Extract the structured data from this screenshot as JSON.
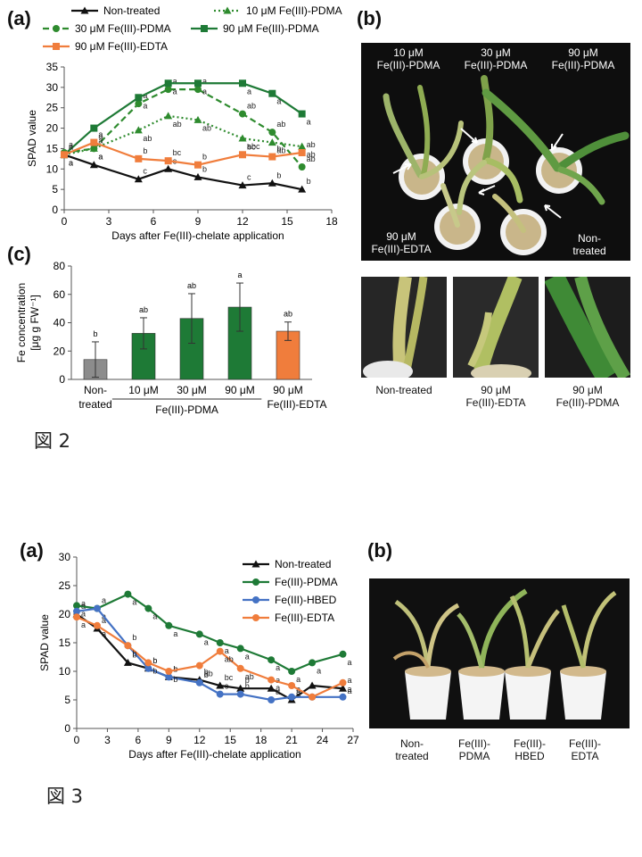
{
  "colors": {
    "non_treated": "#111111",
    "pdma10": "#2e8b2e",
    "pdma30": "#2e8b2e",
    "pdma90": "#1e7a36",
    "edta": "#f07d3c",
    "hbed": "#4472c4",
    "pdma_fig3": "#1e7a36",
    "bar_grey": "#8c8c8c"
  },
  "fig2": {
    "caption": "図 2",
    "panel_a_label": "(a)",
    "panel_b_label": "(b)",
    "panel_c_label": "(c)",
    "photo_b_top_labels": [
      {
        "l1": "10 μM",
        "l2": "Fe(III)-PDMA"
      },
      {
        "l1": "30 μM",
        "l2": "Fe(III)-PDMA"
      },
      {
        "l1": "90 μM",
        "l2": "Fe(III)-PDMA"
      }
    ],
    "photo_b_bottom_left": {
      "l1": "90 μM",
      "l2": "Fe(III)-EDTA"
    },
    "photo_b_bottom_right": {
      "l1": "Non-",
      "l2": "treated"
    },
    "closeup_captions": [
      {
        "l1": "Non-treated",
        "l2": ""
      },
      {
        "l1": "90 μM",
        "l2": "Fe(III)-EDTA"
      },
      {
        "l1": "90 μM",
        "l2": "Fe(III)-PDMA"
      }
    ]
  },
  "fig3": {
    "caption": "図 3",
    "panel_a_label": "(a)",
    "panel_b_label": "(b)",
    "photo_captions": [
      {
        "l1": "Non-",
        "l2": "treated"
      },
      {
        "l1": "Fe(III)-",
        "l2": "PDMA"
      },
      {
        "l1": "Fe(III)-",
        "l2": "HBED"
      },
      {
        "l1": "Fe(III)-",
        "l2": "EDTA"
      }
    ]
  },
  "chart_data": [
    {
      "id": "fig2a",
      "type": "line",
      "xlabel": "Days after Fe(III)-chelate application",
      "ylabel": "SPAD value",
      "xlim": [
        0,
        18
      ],
      "ylim": [
        0,
        35
      ],
      "xticks": [
        0,
        3,
        6,
        9,
        12,
        15,
        18
      ],
      "yticks": [
        0,
        5,
        10,
        15,
        20,
        25,
        30,
        35
      ],
      "legend": "top",
      "series": [
        {
          "key": "non_treated",
          "name": "Non-treated",
          "marker": "triangle",
          "dash": "",
          "x": [
            0,
            2,
            5,
            7,
            9,
            12,
            14,
            16
          ],
          "y": [
            13.5,
            11,
            7.5,
            10,
            8,
            6,
            6.5,
            5
          ],
          "labels": [
            "a",
            "a",
            "c",
            "c",
            "b",
            "c",
            "b",
            "b"
          ]
        },
        {
          "key": "pdma10",
          "name": "10 μM Fe(III)-PDMA",
          "marker": "triangle",
          "dash": "2,3",
          "x": [
            0,
            2,
            5,
            7,
            9,
            12,
            14,
            16
          ],
          "y": [
            13.5,
            15,
            19.5,
            23,
            22,
            17.5,
            16.5,
            15.5
          ],
          "labels": [
            "a",
            "a",
            "ab",
            "ab",
            "ab",
            "abc",
            "ab",
            "ab"
          ]
        },
        {
          "key": "pdma30",
          "name": "30 μM Fe(III)-PDMA",
          "marker": "circle",
          "dash": "7,4",
          "x": [
            0,
            2,
            5,
            7,
            9,
            12,
            14,
            16
          ],
          "y": [
            14,
            15,
            26,
            29.5,
            29.5,
            23.5,
            19,
            10.5
          ],
          "labels": [
            "a",
            "a",
            "a",
            "a",
            "a",
            "ab",
            "ab",
            "ab"
          ]
        },
        {
          "key": "pdma90",
          "name": "90 μM Fe(III)-PDMA",
          "marker": "square",
          "dash": "",
          "x": [
            0,
            2,
            5,
            7,
            9,
            12,
            14,
            16
          ],
          "y": [
            13.5,
            20,
            27.5,
            31,
            31,
            31,
            28.5,
            23.5
          ],
          "labels": [
            "a",
            "a",
            "a",
            "a",
            "a",
            "a",
            "a",
            "a"
          ]
        },
        {
          "key": "edta",
          "name": "90 μM Fe(III)-EDTA",
          "marker": "square",
          "dash": "",
          "x": [
            0,
            2,
            5,
            7,
            9,
            12,
            14,
            16
          ],
          "y": [
            13.5,
            16.5,
            12.5,
            12,
            11,
            13.5,
            13,
            14
          ],
          "labels": [
            "a",
            "a",
            "b",
            "bc",
            "b",
            "bc",
            "b",
            "ab"
          ]
        }
      ]
    },
    {
      "id": "fig2c",
      "type": "bar",
      "ylabel_line1": "Fe concentration",
      "ylabel_line2": "[μg g FW⁻¹]",
      "ylim": [
        0,
        80
      ],
      "yticks": [
        0,
        20,
        40,
        60,
        80
      ],
      "categories": [
        {
          "l1": "Non-",
          "l2": "treated"
        },
        {
          "l1": "10 μM",
          "l2": ""
        },
        {
          "l1": "30 μM",
          "l2": ""
        },
        {
          "l1": "90 μM",
          "l2": ""
        },
        {
          "l1": "90 μM",
          "l2": "Fe(III)-EDTA"
        }
      ],
      "group_label": "Fe(III)-PDMA",
      "values": [
        14,
        32.5,
        43,
        51,
        34
      ],
      "errors": [
        12.5,
        11,
        17.5,
        17,
        6.5
      ],
      "letters": [
        "b",
        "ab",
        "ab",
        "a",
        "ab"
      ],
      "bar_color_keys": [
        "bar_grey",
        "pdma90",
        "pdma90",
        "pdma90",
        "edta"
      ]
    },
    {
      "id": "fig3a",
      "type": "line",
      "xlabel": "Days after Fe(III)-chelate application",
      "ylabel": "SPAD value",
      "xlim": [
        0,
        27
      ],
      "ylim": [
        0,
        30
      ],
      "xticks": [
        0,
        3,
        6,
        9,
        12,
        15,
        18,
        21,
        24,
        27
      ],
      "yticks": [
        0,
        5,
        10,
        15,
        20,
        25,
        30
      ],
      "legend": "right",
      "series": [
        {
          "key": "non_treated",
          "name": "Non-treated",
          "marker": "triangle",
          "x": [
            0,
            2,
            5,
            7,
            9,
            12,
            14,
            16,
            19,
            21,
            23,
            26
          ],
          "y": [
            20,
            17.5,
            11.5,
            10.5,
            9,
            8.5,
            7.5,
            7,
            7,
            5,
            7.5,
            7
          ],
          "labels": [
            "a",
            "a",
            "b",
            "b",
            "b",
            "b",
            "bc",
            "b",
            "a",
            "a",
            "",
            "a"
          ]
        },
        {
          "key": "pdma_fig3",
          "name": "Fe(III)-PDMA",
          "marker": "circle",
          "x": [
            0,
            2,
            5,
            7,
            9,
            12,
            14,
            16,
            19,
            21,
            23,
            26
          ],
          "y": [
            21.5,
            21,
            23.5,
            21,
            18,
            16.5,
            15,
            14,
            12,
            10,
            11.5,
            13
          ],
          "labels": [
            "a",
            "a",
            "a",
            "a",
            "a",
            "a",
            "a",
            "a",
            "a",
            "a",
            "a",
            "a"
          ]
        },
        {
          "key": "hbed",
          "name": "Fe(III)-HBED",
          "marker": "circle",
          "x": [
            0,
            2,
            5,
            7,
            9,
            12,
            14,
            16,
            19,
            21,
            23,
            26
          ],
          "y": [
            20.5,
            21,
            14.5,
            10.5,
            9,
            8,
            6,
            6,
            5,
            5.5,
            5.5,
            5.5
          ],
          "labels": [
            "a",
            "a",
            "b",
            "b",
            "b",
            "b",
            "c",
            "b",
            "a",
            "a",
            "",
            "a"
          ]
        },
        {
          "key": "edta",
          "name": "Fe(III)-EDTA",
          "marker": "circle",
          "x": [
            0,
            2,
            5,
            7,
            9,
            12,
            14,
            16,
            19,
            21,
            23,
            26
          ],
          "y": [
            19.5,
            18,
            14.5,
            11.5,
            10,
            11,
            13.5,
            10.5,
            8.5,
            7.5,
            5.5,
            8
          ],
          "labels": [
            "a",
            "a",
            "b",
            "b",
            "b",
            "ab",
            "ab",
            "ab",
            "a",
            "a",
            "",
            "a"
          ]
        }
      ]
    }
  ]
}
